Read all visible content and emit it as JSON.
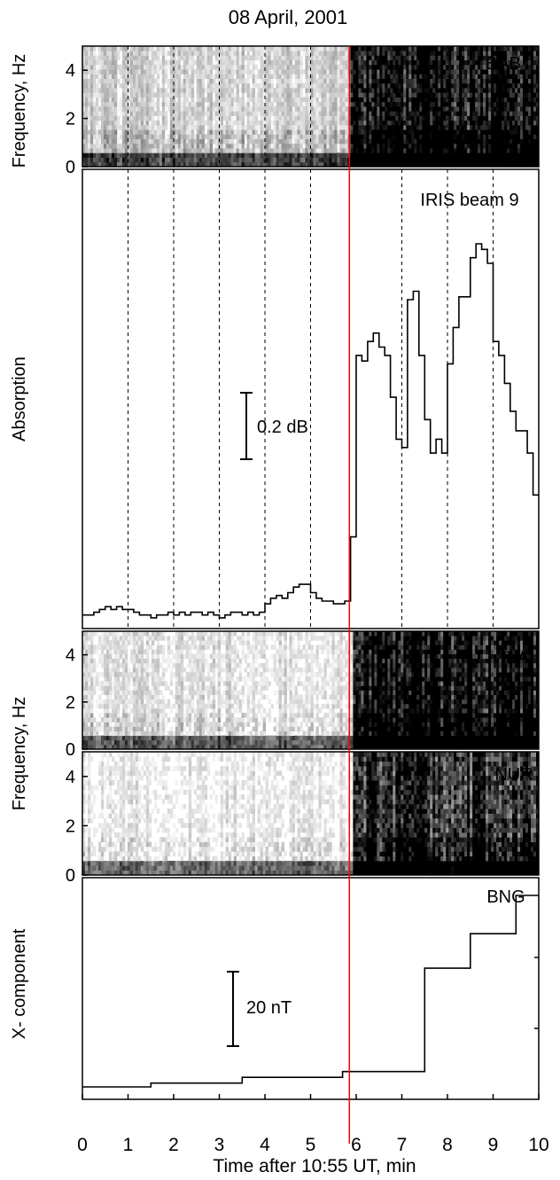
{
  "chart_data": {
    "type": "multi-panel",
    "title": "08 April, 2001",
    "xlabel": "Time after 10:55 UT, min",
    "xlim": [
      0,
      10
    ],
    "xticks": [
      "0",
      "1",
      "2",
      "3",
      "4",
      "5",
      "6",
      "7",
      "8",
      "9",
      "10"
    ],
    "onset_marker_x": 5.85,
    "colors": {
      "onset_line": "#ff0000",
      "ink": "#000000"
    },
    "panels": [
      {
        "id": "bab",
        "type": "heatmap",
        "label": "BAB",
        "ylabel": "Frequency, Hz",
        "ylim": [
          0,
          5
        ],
        "yticks": [
          "0",
          "2",
          "4"
        ],
        "onset_x": 5.85,
        "intensity_before": 0.22,
        "intensity_after": 0.85
      },
      {
        "id": "iris",
        "type": "line",
        "step": true,
        "label": "IRIS beam 9",
        "ylabel": "Absorption",
        "scalebar": "0.2 dB",
        "scalebar_value_db": 0.2,
        "gridlines_x": [
          1,
          2,
          3,
          4,
          5,
          7,
          8,
          9
        ],
        "x": [
          0,
          0.125,
          0.25,
          0.375,
          0.5,
          0.625,
          0.75,
          0.875,
          1.0,
          1.125,
          1.25,
          1.375,
          1.5,
          1.625,
          1.75,
          1.875,
          2.0,
          2.125,
          2.25,
          2.375,
          2.5,
          2.625,
          2.75,
          2.875,
          3.0,
          3.125,
          3.25,
          3.375,
          3.5,
          3.625,
          3.75,
          3.875,
          4.0,
          4.125,
          4.25,
          4.375,
          4.5,
          4.625,
          4.75,
          4.875,
          5.0,
          5.125,
          5.25,
          5.375,
          5.5,
          5.625,
          5.75,
          5.875,
          6.0,
          6.125,
          6.25,
          6.375,
          6.5,
          6.625,
          6.75,
          6.875,
          7.0,
          7.125,
          7.25,
          7.375,
          7.5,
          7.625,
          7.75,
          7.875,
          8.0,
          8.125,
          8.25,
          8.375,
          8.5,
          8.625,
          8.75,
          8.875,
          9.0,
          9.125,
          9.25,
          9.375,
          9.5,
          9.625,
          9.75,
          9.875
        ],
        "values": [
          0.02,
          0.02,
          0.03,
          0.04,
          0.05,
          0.04,
          0.05,
          0.04,
          0.04,
          0.03,
          0.02,
          0.02,
          0.01,
          0.02,
          0.02,
          0.03,
          0.02,
          0.03,
          0.02,
          0.03,
          0.03,
          0.02,
          0.03,
          0.02,
          0.01,
          0.02,
          0.03,
          0.03,
          0.02,
          0.03,
          0.02,
          0.03,
          0.06,
          0.08,
          0.09,
          0.08,
          0.1,
          0.12,
          0.13,
          0.13,
          0.1,
          0.08,
          0.07,
          0.07,
          0.06,
          0.06,
          0.07,
          0.3,
          0.95,
          0.93,
          1.0,
          1.03,
          0.98,
          0.95,
          0.8,
          0.65,
          0.62,
          1.15,
          1.18,
          0.95,
          0.72,
          0.6,
          0.65,
          0.6,
          0.92,
          1.05,
          1.16,
          1.16,
          1.3,
          1.35,
          1.33,
          1.28,
          1.0,
          0.95,
          0.85,
          0.75,
          0.68,
          0.68,
          0.6,
          0.45
        ]
      },
      {
        "id": "iva",
        "type": "heatmap",
        "label": "IVA",
        "ylabel": "Frequency, Hz",
        "ylim": [
          0,
          5
        ],
        "yticks": [
          "0",
          "2",
          "4"
        ],
        "onset_x": 5.95,
        "intensity_before": 0.12,
        "intensity_after": 0.88
      },
      {
        "id": "nur",
        "type": "heatmap",
        "label": "NUR",
        "ylim": [
          0,
          5
        ],
        "yticks": [
          "0",
          "2",
          "4"
        ],
        "onset_x": 5.95,
        "intensity_before": 0.06,
        "intensity_after": 0.72
      },
      {
        "id": "bng",
        "type": "line",
        "step": true,
        "label": "BNG",
        "ylabel": "X- component",
        "scalebar": "20 nT",
        "scalebar_value_nT": 20,
        "x": [
          0,
          1.5,
          3.5,
          5.7,
          7.5,
          8.5,
          9.5,
          10
        ],
        "values": [
          0,
          2,
          5,
          8,
          62,
          80,
          100,
          100
        ]
      }
    ]
  }
}
